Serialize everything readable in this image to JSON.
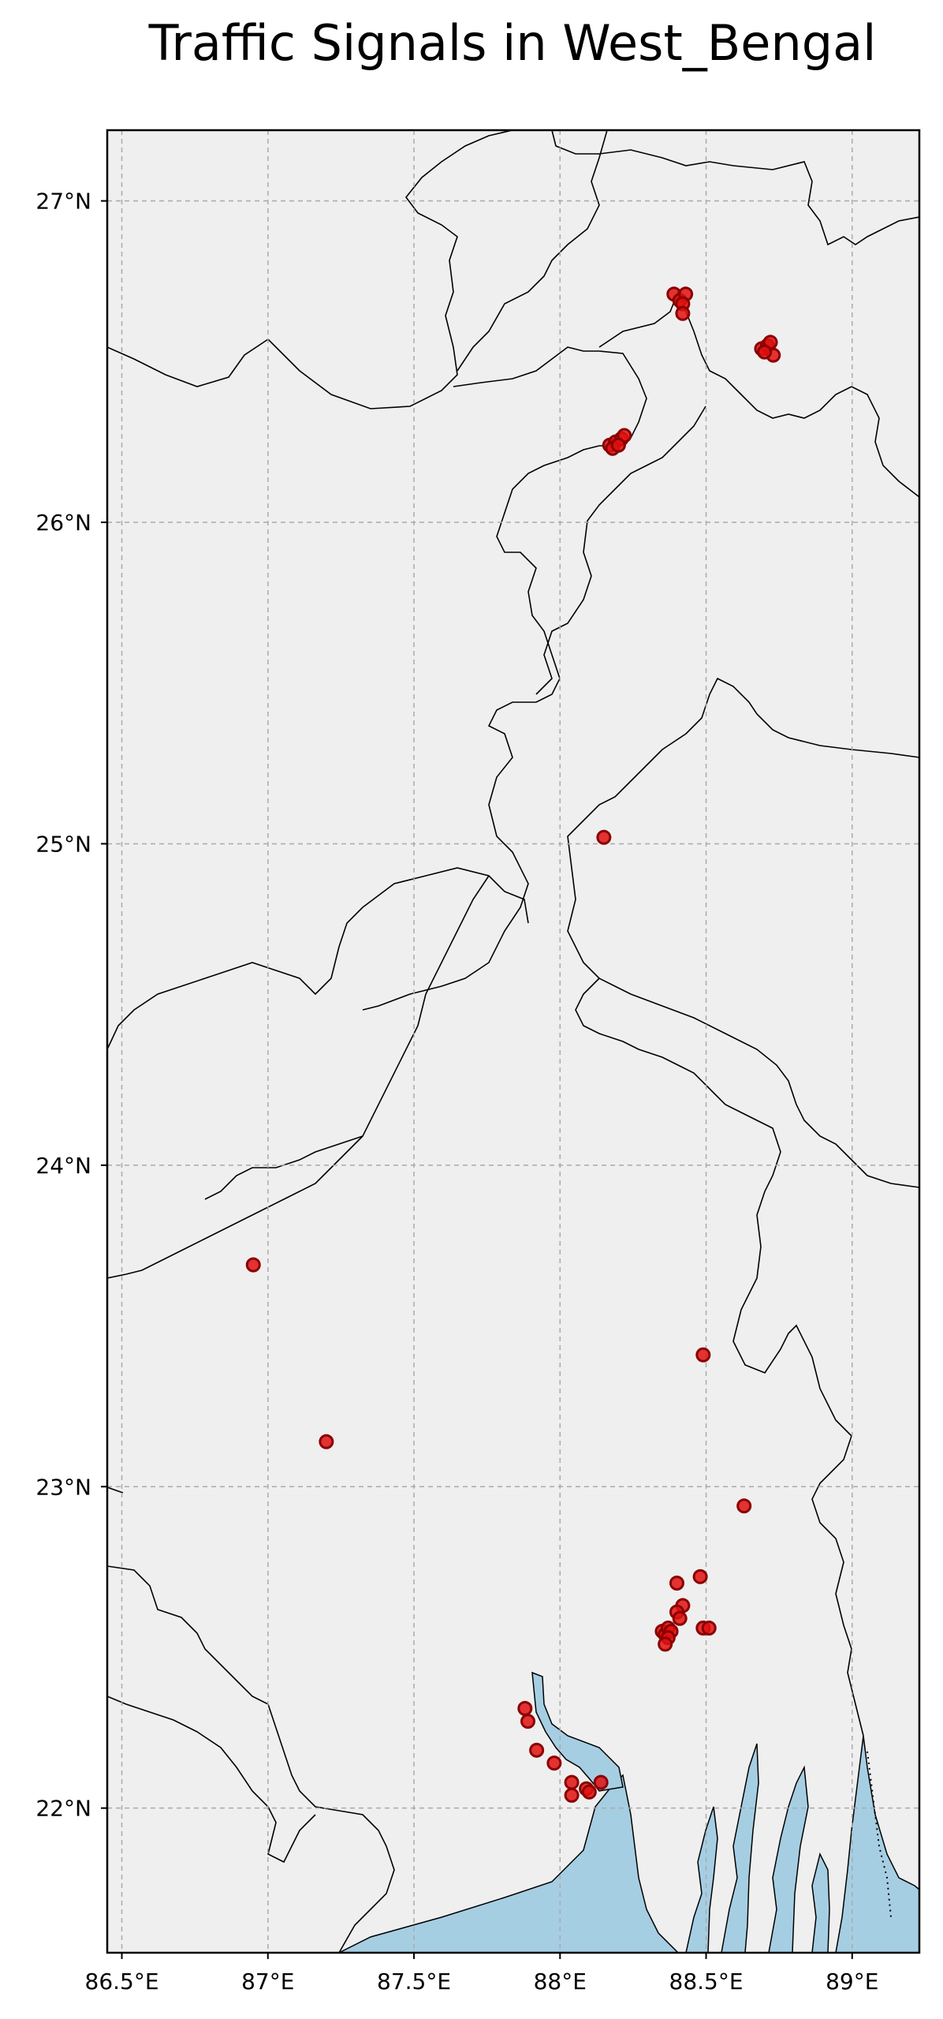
{
  "chart_data": {
    "type": "scatter",
    "title": "Traffic Signals in West_Bengal",
    "xlabel": "",
    "ylabel": "",
    "xlim": [
      86.45,
      89.23
    ],
    "ylim": [
      21.55,
      27.22
    ],
    "grid": true,
    "x_ticks": [
      86.5,
      87.0,
      87.5,
      88.0,
      88.5,
      89.0
    ],
    "x_tick_labels": [
      "86.5°E",
      "87°E",
      "87.5°E",
      "88°E",
      "88.5°E",
      "89°E"
    ],
    "y_ticks": [
      22,
      23,
      24,
      25,
      26,
      27
    ],
    "y_tick_labels": [
      "22°N",
      "23°N",
      "24°N",
      "25°N",
      "26°N",
      "27°N"
    ],
    "colors": {
      "land": "#efefef",
      "water": "#a6cee3",
      "marker_fill": "#e01010",
      "marker_edge": "#8b0000",
      "border": "#000000"
    },
    "points": [
      {
        "x": 88.39,
        "y": 26.71
      },
      {
        "x": 88.41,
        "y": 26.69
      },
      {
        "x": 88.43,
        "y": 26.71
      },
      {
        "x": 88.42,
        "y": 26.68
      },
      {
        "x": 88.42,
        "y": 26.65
      },
      {
        "x": 88.69,
        "y": 26.54
      },
      {
        "x": 88.71,
        "y": 26.55
      },
      {
        "x": 88.72,
        "y": 26.56
      },
      {
        "x": 88.73,
        "y": 26.52
      },
      {
        "x": 88.7,
        "y": 26.53
      },
      {
        "x": 88.17,
        "y": 26.24
      },
      {
        "x": 88.19,
        "y": 26.25
      },
      {
        "x": 88.21,
        "y": 26.26
      },
      {
        "x": 88.22,
        "y": 26.27
      },
      {
        "x": 88.18,
        "y": 26.23
      },
      {
        "x": 88.2,
        "y": 26.24
      },
      {
        "x": 88.15,
        "y": 25.02
      },
      {
        "x": 86.95,
        "y": 23.69
      },
      {
        "x": 87.2,
        "y": 23.14
      },
      {
        "x": 88.49,
        "y": 23.41
      },
      {
        "x": 88.63,
        "y": 22.94
      },
      {
        "x": 88.48,
        "y": 22.72
      },
      {
        "x": 88.4,
        "y": 22.7
      },
      {
        "x": 88.42,
        "y": 22.63
      },
      {
        "x": 88.4,
        "y": 22.61
      },
      {
        "x": 88.41,
        "y": 22.59
      },
      {
        "x": 88.49,
        "y": 22.56
      },
      {
        "x": 88.51,
        "y": 22.56
      },
      {
        "x": 88.35,
        "y": 22.55
      },
      {
        "x": 88.36,
        "y": 22.54
      },
      {
        "x": 88.37,
        "y": 22.56
      },
      {
        "x": 88.38,
        "y": 22.55
      },
      {
        "x": 88.37,
        "y": 22.53
      },
      {
        "x": 88.36,
        "y": 22.51
      },
      {
        "x": 87.88,
        "y": 22.31
      },
      {
        "x": 87.89,
        "y": 22.27
      },
      {
        "x": 87.92,
        "y": 22.18
      },
      {
        "x": 87.98,
        "y": 22.14
      },
      {
        "x": 88.04,
        "y": 22.08
      },
      {
        "x": 88.09,
        "y": 22.06
      },
      {
        "x": 88.1,
        "y": 22.05
      },
      {
        "x": 88.14,
        "y": 22.08
      },
      {
        "x": 88.04,
        "y": 22.04
      }
    ]
  }
}
